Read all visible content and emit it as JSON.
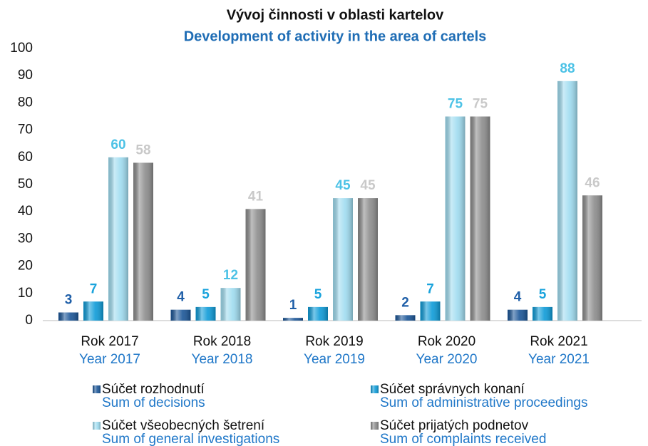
{
  "chart_data": {
    "type": "bar",
    "title": "Vývoj činnosti v oblasti kartelov",
    "subtitle": "Development of activity in the area of cartels",
    "categories": [
      "Rok 2017",
      "Rok 2018",
      "Rok 2019",
      "Rok 2020",
      "Rok 2021"
    ],
    "categories_en": [
      "Year 2017",
      "Year 2018",
      "Year 2019",
      "Year 2020",
      "Year 2021"
    ],
    "series": [
      {
        "name": "Súčet rozhodnutí",
        "name_en": "Sum of decisions",
        "color": "#1a5597",
        "label_color": "#1f5fa8",
        "values": [
          3,
          4,
          1,
          2,
          4
        ]
      },
      {
        "name": "Súčet správnych konaní",
        "name_en": "Sum of administrative proceedings",
        "color": "#0d9bd8",
        "label_color": "#1aa3dc",
        "values": [
          7,
          5,
          5,
          7,
          5
        ]
      },
      {
        "name": "Súčet všeobecných šetrení",
        "name_en": "Sum of general investigations",
        "color": "#9fdcf0",
        "label_color": "#4cc2e6",
        "values": [
          60,
          12,
          45,
          75,
          88
        ]
      },
      {
        "name": "Súčet prijatých podnetov",
        "name_en": "Sum of complaints received",
        "color": "#8c8c8c",
        "label_color": "#c9c9c9",
        "values": [
          58,
          41,
          45,
          75,
          46
        ]
      }
    ],
    "ylim": [
      0,
      100
    ],
    "yticks": [
      0,
      10,
      20,
      30,
      40,
      50,
      60,
      70,
      80,
      90,
      100
    ],
    "grid": false
  }
}
